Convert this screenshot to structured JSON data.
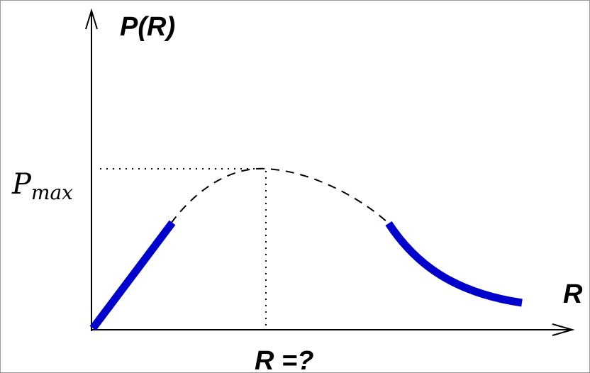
{
  "diagram": {
    "y_axis_label": "P(R)",
    "x_axis_label": "R",
    "peak_label_main": "P",
    "peak_label_sub": "max",
    "optimum_label": "R =?",
    "colors": {
      "axis": "#000000",
      "known_segments": "#0000cc",
      "dashed_curve": "#000000",
      "guide_lines": "#000000"
    }
  }
}
